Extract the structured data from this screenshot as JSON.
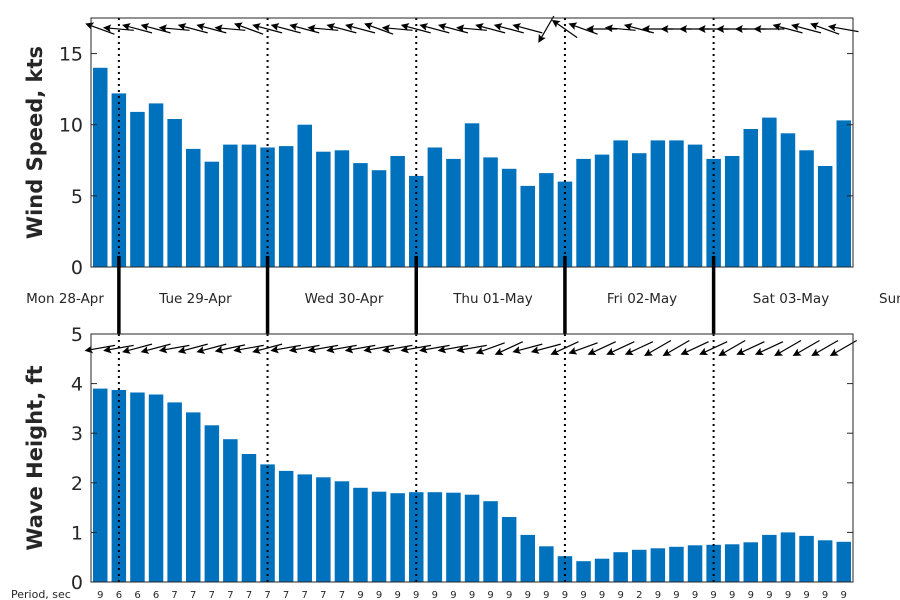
{
  "chart_data": [
    {
      "type": "bar",
      "ylabel": "Wind Speed, kts",
      "ylim": [
        0,
        17.5
      ],
      "yticks": [
        0,
        5,
        10,
        15
      ],
      "grid": false,
      "bar_color": "#0072BD",
      "x": [
        0,
        1,
        2,
        3,
        4,
        5,
        6,
        7,
        8,
        9,
        10,
        11,
        12,
        13,
        14,
        15,
        16,
        17,
        18,
        19,
        20,
        21,
        22,
        23,
        24,
        25,
        26,
        27,
        28,
        29,
        30,
        31,
        32,
        33,
        34,
        35,
        36,
        37,
        38,
        39,
        40
      ],
      "values": [
        14.0,
        12.2,
        10.9,
        11.5,
        10.4,
        8.3,
        7.4,
        8.6,
        8.6,
        8.4,
        8.5,
        10.0,
        8.1,
        8.2,
        7.3,
        6.8,
        7.8,
        6.4,
        8.4,
        7.6,
        10.1,
        7.7,
        6.9,
        5.7,
        6.6,
        6.0,
        7.6,
        7.9,
        8.9,
        8.0,
        8.9,
        8.9,
        8.6,
        7.6,
        7.8,
        9.7,
        10.5,
        9.4,
        8.2,
        7.1,
        10.3
      ],
      "direction_arrows_deg": [
        20,
        5,
        15,
        15,
        5,
        15,
        15,
        5,
        20,
        15,
        15,
        15,
        5,
        15,
        15,
        20,
        5,
        15,
        15,
        15,
        5,
        15,
        15,
        15,
        300,
        35,
        20,
        0,
        5,
        15,
        0,
        0,
        0,
        0,
        0,
        0,
        0,
        15,
        15,
        20,
        10
      ]
    },
    {
      "type": "bar",
      "ylabel": "Wave Height, ft",
      "ylim": [
        0,
        5
      ],
      "yticks": [
        0,
        1,
        2,
        3,
        4,
        5
      ],
      "grid": false,
      "bar_color": "#0072BD",
      "x": [
        0,
        1,
        2,
        3,
        4,
        5,
        6,
        7,
        8,
        9,
        10,
        11,
        12,
        13,
        14,
        15,
        16,
        17,
        18,
        19,
        20,
        21,
        22,
        23,
        24,
        25,
        26,
        27,
        28,
        29,
        30,
        31,
        32,
        33,
        34,
        35,
        36,
        37,
        38,
        39,
        40
      ],
      "values": [
        3.9,
        3.87,
        3.82,
        3.78,
        3.62,
        3.42,
        3.16,
        2.88,
        2.58,
        2.37,
        2.24,
        2.17,
        2.11,
        2.03,
        1.9,
        1.82,
        1.79,
        1.81,
        1.81,
        1.8,
        1.76,
        1.63,
        1.31,
        0.95,
        0.72,
        0.52,
        0.42,
        0.47,
        0.6,
        0.65,
        0.68,
        0.71,
        0.74,
        0.75,
        0.76,
        0.8,
        0.95,
        1.0,
        0.93,
        0.84,
        0.81
      ],
      "direction_arrows_deg": [
        -10,
        -10,
        -15,
        -15,
        -10,
        -15,
        -15,
        -12,
        -10,
        -15,
        -10,
        -10,
        -10,
        -10,
        -10,
        -10,
        -10,
        -10,
        -10,
        -10,
        -10,
        -20,
        -25,
        -15,
        -15,
        -25,
        -20,
        -25,
        -25,
        -25,
        -30,
        -30,
        -25,
        -25,
        -30,
        -25,
        -25,
        -30,
        -30,
        -30,
        -30
      ],
      "period_label": "Period, sec",
      "periods": [
        "9",
        "6",
        "6",
        "6",
        "7",
        "7",
        "7",
        "7",
        "7",
        "7",
        "7",
        "7",
        "7",
        "7",
        "9",
        "9",
        "9",
        "9",
        "9",
        "9",
        "9",
        "9",
        "9",
        "9",
        "9",
        "9",
        "9",
        "9",
        "9",
        "2",
        "9",
        "9",
        "9",
        "9",
        "9",
        "9",
        "9",
        "9",
        "9",
        "9",
        "9"
      ]
    }
  ],
  "day_labels": [
    "Mon 28-Apr",
    "Tue 29-Apr",
    "Wed 30-Apr",
    "Thu 01-May",
    "Fri 02-May",
    "Sat 03-May",
    "Sun"
  ]
}
